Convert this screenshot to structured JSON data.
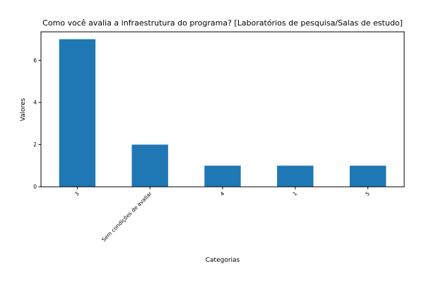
{
  "chart_data": {
    "type": "bar",
    "title": "Como você avalia a infraestrutura do programa? [Laboratórios de pesquisa/Salas de estudo]",
    "xlabel": "Categorias",
    "ylabel": "Valores",
    "categories": [
      "3",
      "Sem condições de avaliar",
      "4",
      "1",
      "5"
    ],
    "values": [
      7,
      2,
      1,
      1,
      1
    ],
    "ylim": [
      0,
      7.35
    ],
    "yticks": [
      0,
      2,
      4,
      6
    ],
    "grid": false,
    "legend": "none",
    "bar_color": "#1f77b4"
  }
}
